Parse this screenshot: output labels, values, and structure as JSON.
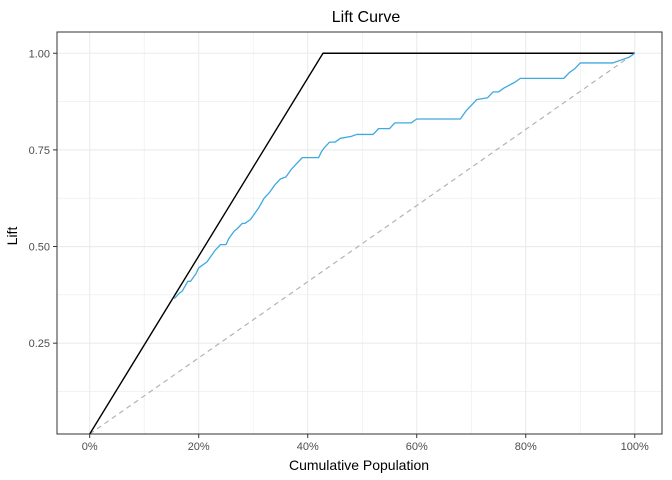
{
  "chart_data": {
    "type": "line",
    "title": "Lift Curve",
    "xlabel": "Cumulative Population",
    "ylabel": "Lift",
    "xlim": [
      -0.06,
      1.05
    ],
    "ylim": [
      0.015,
      1.055
    ],
    "x_ticks": [
      {
        "value": 0.0,
        "label": "0%"
      },
      {
        "value": 0.2,
        "label": "20%"
      },
      {
        "value": 0.4,
        "label": "40%"
      },
      {
        "value": 0.6,
        "label": "60%"
      },
      {
        "value": 0.8,
        "label": "80%"
      },
      {
        "value": 1.0,
        "label": "100%"
      }
    ],
    "y_ticks": [
      {
        "value": 0.25,
        "label": "0.25"
      },
      {
        "value": 0.5,
        "label": "0.50"
      },
      {
        "value": 0.75,
        "label": "0.75"
      },
      {
        "value": 1.0,
        "label": "1.00"
      }
    ],
    "grid": true,
    "colors": {
      "model": "#3fa9e0",
      "perfect": "#000000",
      "random": "#b3b3b3",
      "grid": "#ebebeb",
      "panel_border": "#333333"
    },
    "series": [
      {
        "style": "solid-black",
        "x": [
          0.0,
          0.428,
          1.0
        ],
        "y": [
          0.015,
          1.0,
          1.0
        ]
      },
      {
        "style": "dashed-gray",
        "x": [
          0.0,
          1.0
        ],
        "y": [
          0.015,
          1.0
        ]
      },
      {
        "style": "solid-blue",
        "x": [
          0.155,
          0.165,
          0.17,
          0.18,
          0.185,
          0.195,
          0.2,
          0.21,
          0.215,
          0.225,
          0.23,
          0.24,
          0.25,
          0.255,
          0.265,
          0.27,
          0.28,
          0.285,
          0.295,
          0.3,
          0.31,
          0.32,
          0.33,
          0.34,
          0.35,
          0.36,
          0.37,
          0.38,
          0.39,
          0.4,
          0.42,
          0.425,
          0.43,
          0.44,
          0.45,
          0.46,
          0.48,
          0.49,
          0.52,
          0.53,
          0.55,
          0.56,
          0.59,
          0.6,
          0.68,
          0.69,
          0.7,
          0.71,
          0.73,
          0.74,
          0.75,
          0.76,
          0.78,
          0.79,
          0.87,
          0.88,
          0.89,
          0.9,
          0.96,
          0.98,
          0.99,
          1.0
        ],
        "y": [
          0.365,
          0.38,
          0.385,
          0.41,
          0.41,
          0.43,
          0.445,
          0.455,
          0.46,
          0.48,
          0.49,
          0.505,
          0.505,
          0.52,
          0.54,
          0.545,
          0.56,
          0.56,
          0.57,
          0.58,
          0.6,
          0.625,
          0.64,
          0.66,
          0.675,
          0.68,
          0.7,
          0.715,
          0.73,
          0.73,
          0.73,
          0.745,
          0.755,
          0.77,
          0.77,
          0.78,
          0.785,
          0.79,
          0.79,
          0.805,
          0.805,
          0.82,
          0.82,
          0.83,
          0.83,
          0.85,
          0.865,
          0.88,
          0.885,
          0.9,
          0.9,
          0.91,
          0.925,
          0.935,
          0.935,
          0.95,
          0.96,
          0.975,
          0.975,
          0.985,
          0.99,
          1.0
        ]
      }
    ]
  }
}
